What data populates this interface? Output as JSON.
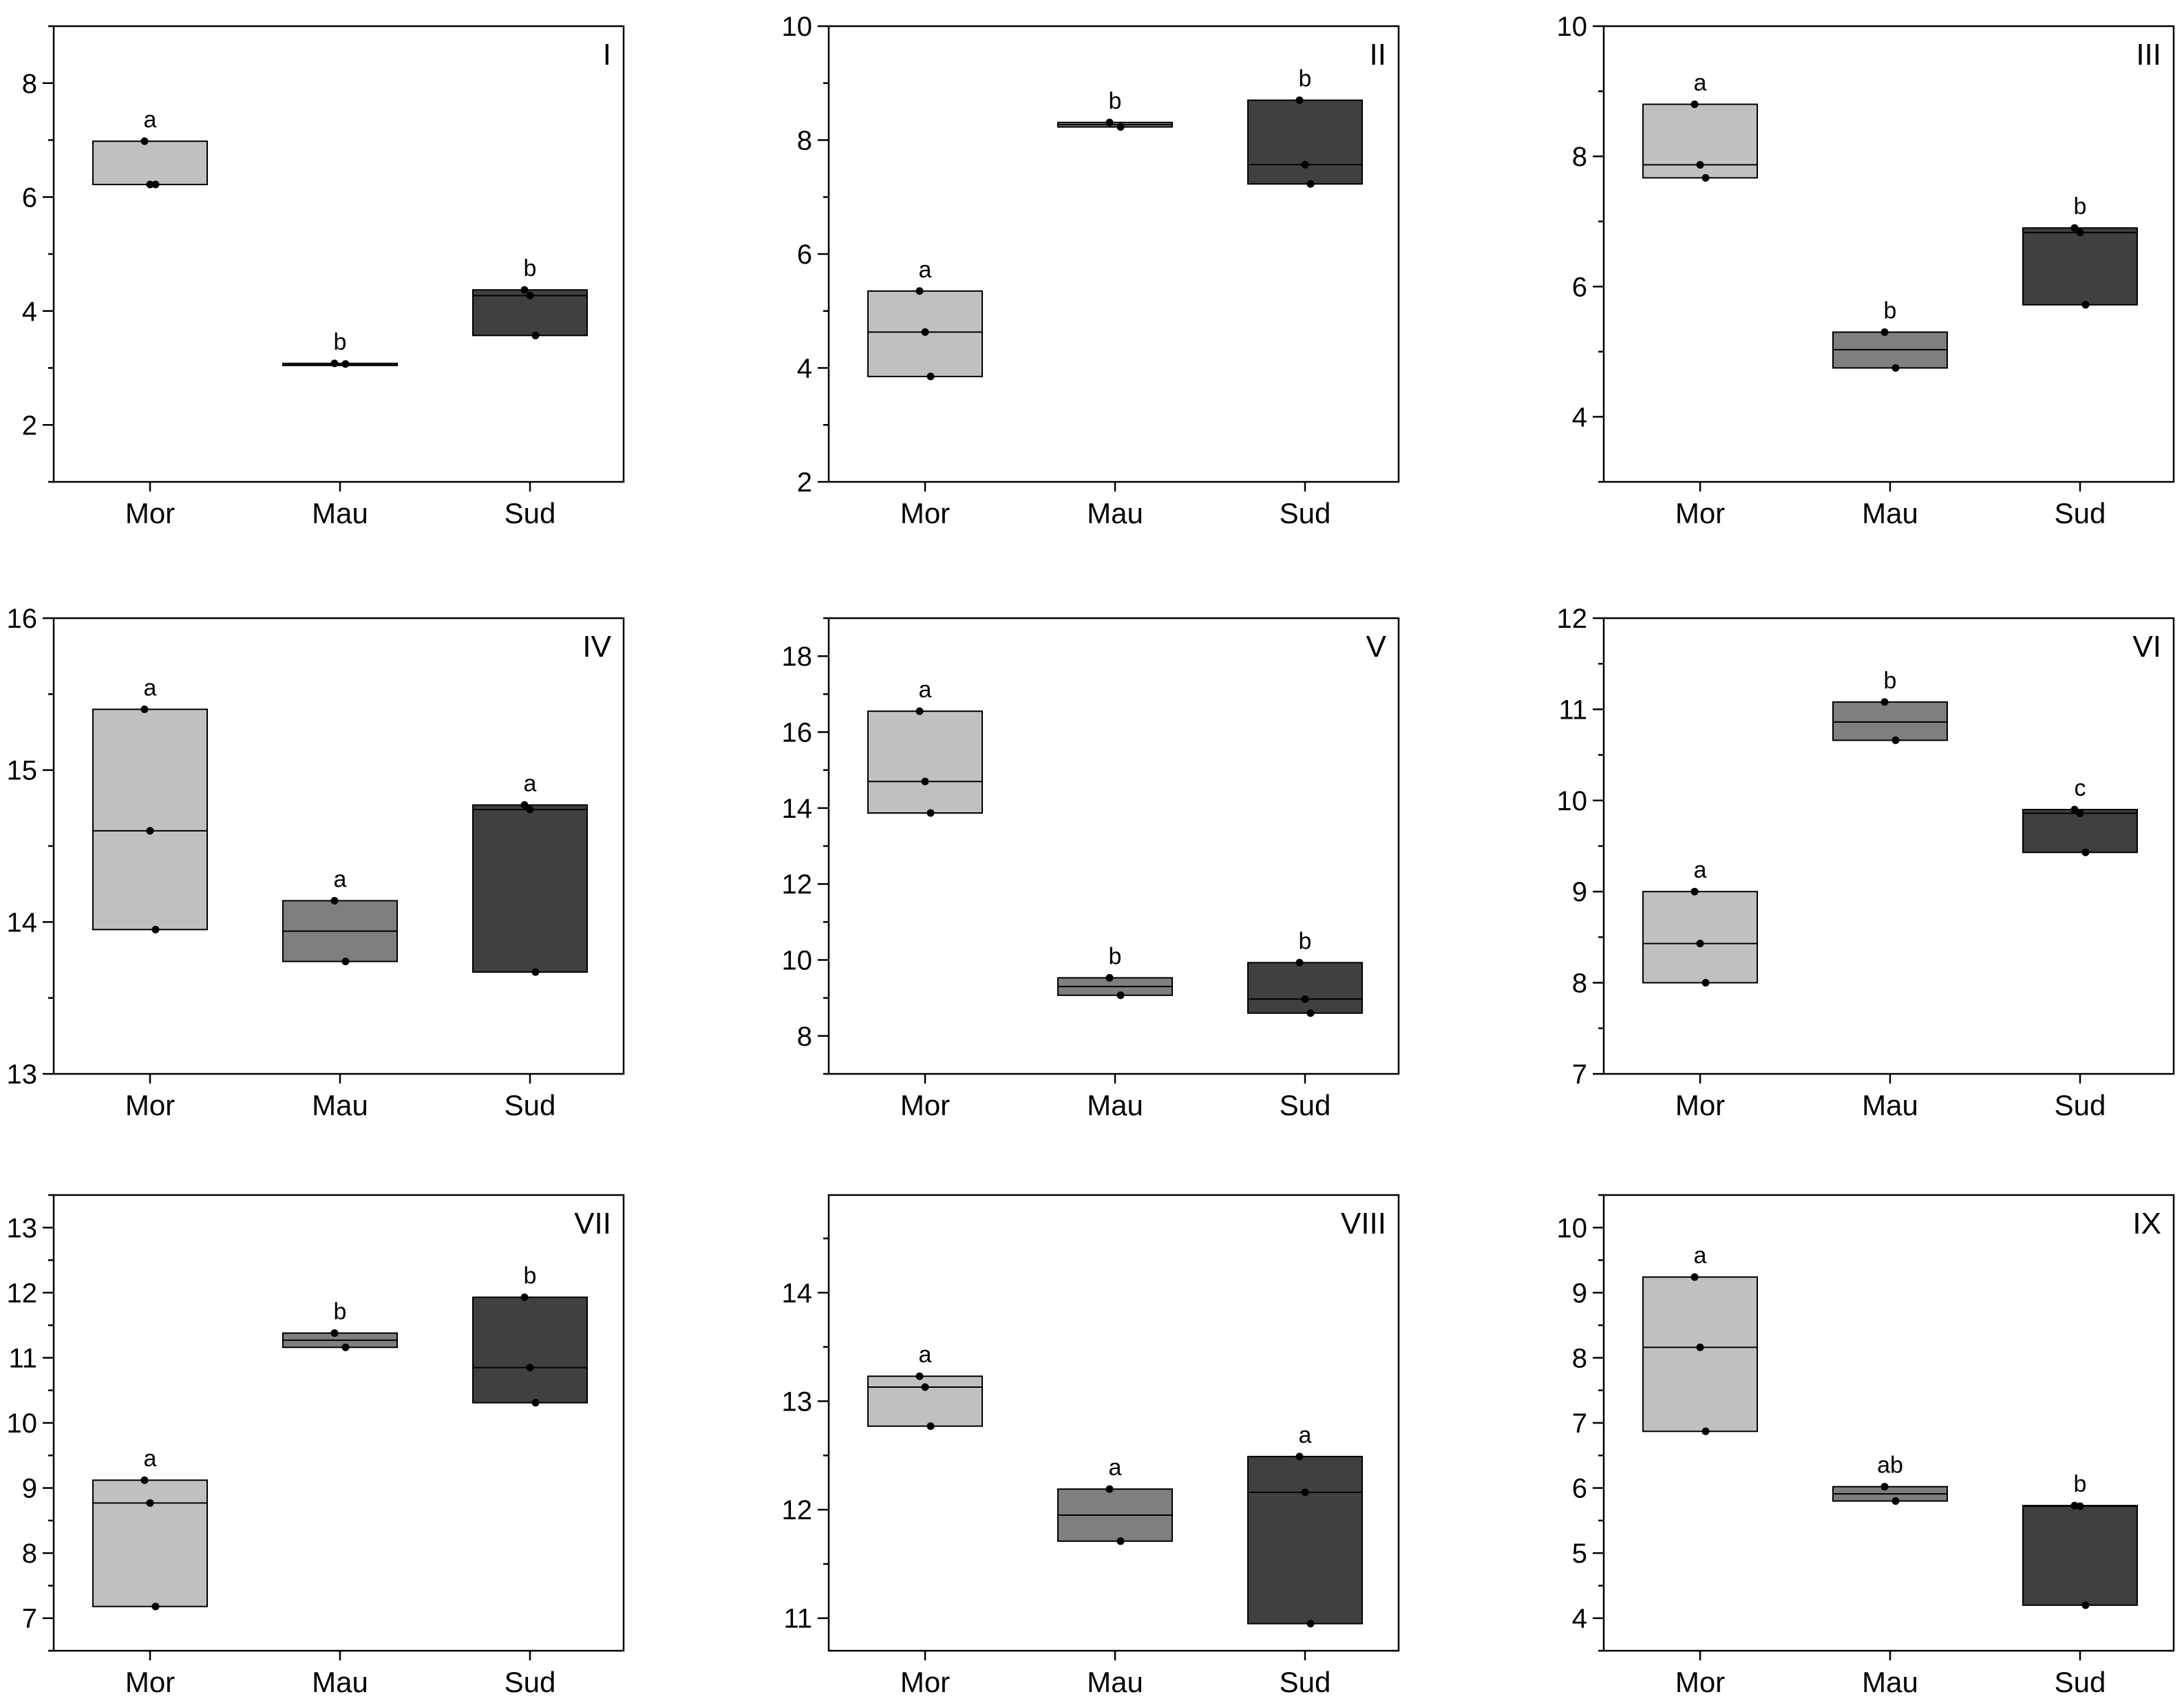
{
  "chart_data": [
    {
      "type": "box",
      "panel": "I",
      "categories": [
        "Mor",
        "Mau",
        "Sud"
      ],
      "ylim": [
        1,
        9
      ],
      "yticks": [
        2,
        4,
        6,
        8
      ],
      "groups": [
        {
          "name": "Mor",
          "q1": 6.22,
          "median": 6.22,
          "q3": 6.98,
          "points": [
            6.98,
            6.22,
            6.22
          ],
          "letter": "a",
          "color": "#c0c0c0"
        },
        {
          "name": "Mau",
          "q1": 3.07,
          "median": 3.07,
          "q3": 3.08,
          "points": [
            3.08,
            3.07
          ],
          "letter": "b",
          "color": "#7f7f7f"
        },
        {
          "name": "Sud",
          "q1": 3.57,
          "median": 4.27,
          "q3": 4.37,
          "points": [
            4.37,
            4.27,
            3.57
          ],
          "letter": "b",
          "color": "#404040"
        }
      ]
    },
    {
      "type": "box",
      "panel": "II",
      "categories": [
        "Mor",
        "Mau",
        "Sud"
      ],
      "ylim": [
        2,
        10
      ],
      "yticks": [
        2,
        4,
        6,
        8,
        10
      ],
      "groups": [
        {
          "name": "Mor",
          "q1": 3.85,
          "median": 4.63,
          "q3": 5.35,
          "points": [
            5.35,
            4.63,
            3.85
          ],
          "letter": "a",
          "color": "#c0c0c0"
        },
        {
          "name": "Mau",
          "q1": 8.23,
          "median": 8.27,
          "q3": 8.31,
          "points": [
            8.31,
            8.23
          ],
          "letter": "b",
          "color": "#7f7f7f"
        },
        {
          "name": "Sud",
          "q1": 7.23,
          "median": 7.57,
          "q3": 8.7,
          "points": [
            8.7,
            7.57,
            7.23
          ],
          "letter": "b",
          "color": "#404040"
        }
      ]
    },
    {
      "type": "box",
      "panel": "III",
      "categories": [
        "Mor",
        "Mau",
        "Sud"
      ],
      "ylim": [
        3,
        10
      ],
      "yticks": [
        4,
        6,
        8,
        10
      ],
      "groups": [
        {
          "name": "Mor",
          "q1": 7.67,
          "median": 7.87,
          "q3": 8.8,
          "points": [
            8.8,
            7.87,
            7.67
          ],
          "letter": "a",
          "color": "#c0c0c0"
        },
        {
          "name": "Mau",
          "q1": 4.75,
          "median": 5.03,
          "q3": 5.3,
          "points": [
            5.3,
            4.75
          ],
          "letter": "b",
          "color": "#7f7f7f"
        },
        {
          "name": "Sud",
          "q1": 5.72,
          "median": 6.83,
          "q3": 6.9,
          "points": [
            6.9,
            6.83,
            5.72
          ],
          "letter": "b",
          "color": "#404040"
        }
      ]
    },
    {
      "type": "box",
      "panel": "IV",
      "categories": [
        "Mor",
        "Mau",
        "Sud"
      ],
      "ylim": [
        13,
        16
      ],
      "yticks": [
        13,
        14,
        15,
        16
      ],
      "groups": [
        {
          "name": "Mor",
          "q1": 13.95,
          "median": 14.6,
          "q3": 15.4,
          "points": [
            15.4,
            14.6,
            13.95
          ],
          "letter": "a",
          "color": "#c0c0c0"
        },
        {
          "name": "Mau",
          "q1": 13.74,
          "median": 13.94,
          "q3": 14.14,
          "points": [
            14.14,
            13.74
          ],
          "letter": "a",
          "color": "#7f7f7f"
        },
        {
          "name": "Sud",
          "q1": 13.67,
          "median": 14.74,
          "q3": 14.77,
          "points": [
            14.77,
            14.74,
            13.67
          ],
          "letter": "a",
          "color": "#404040"
        }
      ]
    },
    {
      "type": "box",
      "panel": "V",
      "categories": [
        "Mor",
        "Mau",
        "Sud"
      ],
      "ylim": [
        7,
        19
      ],
      "yticks": [
        8,
        10,
        12,
        14,
        16,
        18
      ],
      "groups": [
        {
          "name": "Mor",
          "q1": 13.87,
          "median": 14.7,
          "q3": 16.55,
          "points": [
            16.55,
            14.7,
            13.87
          ],
          "letter": "a",
          "color": "#c0c0c0"
        },
        {
          "name": "Mau",
          "q1": 9.07,
          "median": 9.3,
          "q3": 9.53,
          "points": [
            9.53,
            9.07
          ],
          "letter": "b",
          "color": "#7f7f7f"
        },
        {
          "name": "Sud",
          "q1": 8.6,
          "median": 8.97,
          "q3": 9.93,
          "points": [
            9.93,
            8.97,
            8.6
          ],
          "letter": "b",
          "color": "#404040"
        }
      ]
    },
    {
      "type": "box",
      "panel": "VI",
      "categories": [
        "Mor",
        "Mau",
        "Sud"
      ],
      "ylim": [
        7,
        12
      ],
      "yticks": [
        7,
        8,
        9,
        10,
        11,
        12
      ],
      "groups": [
        {
          "name": "Mor",
          "q1": 8,
          "median": 8.43,
          "q3": 9,
          "points": [
            9,
            8.43,
            8
          ],
          "letter": "a",
          "color": "#c0c0c0"
        },
        {
          "name": "Mau",
          "q1": 10.66,
          "median": 10.86,
          "q3": 11.08,
          "points": [
            11.08,
            10.66
          ],
          "letter": "b",
          "color": "#7f7f7f"
        },
        {
          "name": "Sud",
          "q1": 9.43,
          "median": 9.86,
          "q3": 9.9,
          "points": [
            9.9,
            9.86,
            9.43
          ],
          "letter": "c",
          "color": "#404040"
        }
      ]
    },
    {
      "type": "box",
      "panel": "VII",
      "categories": [
        "Mor",
        "Mau",
        "Sud"
      ],
      "ylim": [
        6.5,
        13.5
      ],
      "yticks": [
        7,
        8,
        9,
        10,
        11,
        12,
        13
      ],
      "groups": [
        {
          "name": "Mor",
          "q1": 7.18,
          "median": 8.77,
          "q3": 9.12,
          "points": [
            9.12,
            8.77,
            7.18
          ],
          "letter": "a",
          "color": "#c0c0c0"
        },
        {
          "name": "Mau",
          "q1": 11.16,
          "median": 11.27,
          "q3": 11.38,
          "points": [
            11.38,
            11.16
          ],
          "letter": "b",
          "color": "#7f7f7f"
        },
        {
          "name": "Sud",
          "q1": 10.31,
          "median": 10.85,
          "q3": 11.93,
          "points": [
            11.93,
            10.85,
            10.31
          ],
          "letter": "b",
          "color": "#404040"
        }
      ]
    },
    {
      "type": "box",
      "panel": "VIII",
      "categories": [
        "Mor",
        "Mau",
        "Sud"
      ],
      "ylim": [
        10.7,
        14.9
      ],
      "yticks": [
        11,
        12,
        13,
        14
      ],
      "groups": [
        {
          "name": "Mor",
          "q1": 12.77,
          "median": 13.13,
          "q3": 13.23,
          "points": [
            13.23,
            13.13,
            12.77
          ],
          "letter": "a",
          "color": "#c0c0c0"
        },
        {
          "name": "Mau",
          "q1": 11.71,
          "median": 11.95,
          "q3": 12.19,
          "points": [
            12.19,
            11.71
          ],
          "letter": "a",
          "color": "#7f7f7f"
        },
        {
          "name": "Sud",
          "q1": 10.95,
          "median": 12.16,
          "q3": 12.49,
          "points": [
            12.49,
            12.16,
            10.95
          ],
          "letter": "a",
          "color": "#404040"
        }
      ]
    },
    {
      "type": "box",
      "panel": "IX",
      "categories": [
        "Mor",
        "Mau",
        "Sud"
      ],
      "ylim": [
        3.5,
        10.5
      ],
      "yticks": [
        4,
        5,
        6,
        7,
        8,
        9,
        10
      ],
      "groups": [
        {
          "name": "Mor",
          "q1": 6.87,
          "median": 8.16,
          "q3": 9.24,
          "points": [
            9.24,
            8.16,
            6.87
          ],
          "letter": "a",
          "color": "#c0c0c0"
        },
        {
          "name": "Mau",
          "q1": 5.8,
          "median": 5.91,
          "q3": 6.02,
          "points": [
            6.02,
            5.8
          ],
          "letter": "ab",
          "color": "#7f7f7f"
        },
        {
          "name": "Sud",
          "q1": 4.2,
          "median": 5.72,
          "q3": 5.73,
          "points": [
            5.73,
            5.72,
            4.2
          ],
          "letter": "b",
          "color": "#404040"
        }
      ]
    }
  ]
}
